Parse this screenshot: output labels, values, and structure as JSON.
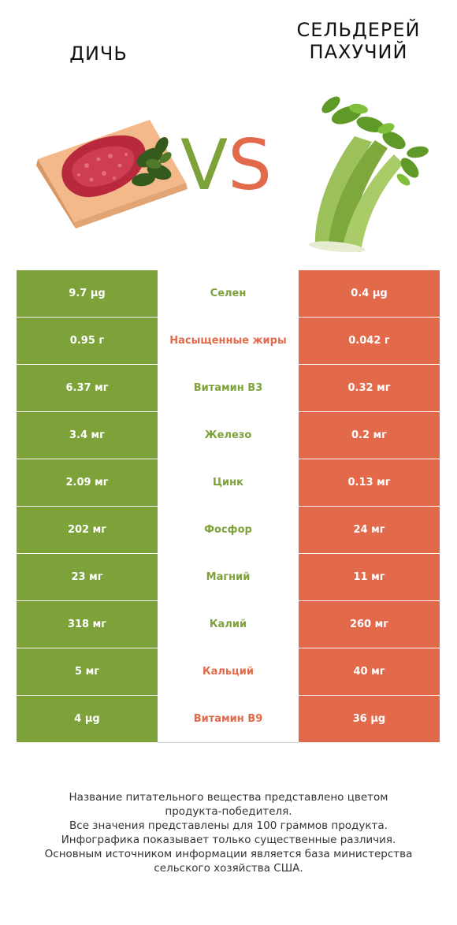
{
  "header": {
    "left_title": "ДИЧЬ",
    "right_title_line1": "СЕЛЬДЕРЕЙ",
    "right_title_line2": "ПАХУЧИЙ",
    "vs_v": "V",
    "vs_s": "S"
  },
  "colors": {
    "left_winner": "#7ea23a",
    "right_winner": "#e26a4b"
  },
  "rows": [
    {
      "left": "9.7 µg",
      "name": "Селен",
      "right": "0.4 µg",
      "winner": "left"
    },
    {
      "left": "0.95 г",
      "name": "Насыщенные жиры",
      "right": "0.042 г",
      "winner": "right"
    },
    {
      "left": "6.37 мг",
      "name": "Витамин B3",
      "right": "0.32 мг",
      "winner": "left"
    },
    {
      "left": "3.4 мг",
      "name": "Железо",
      "right": "0.2 мг",
      "winner": "left"
    },
    {
      "left": "2.09 мг",
      "name": "Цинк",
      "right": "0.13 мг",
      "winner": "left"
    },
    {
      "left": "202 мг",
      "name": "Фосфор",
      "right": "24 мг",
      "winner": "left"
    },
    {
      "left": "23 мг",
      "name": "Магний",
      "right": "11 мг",
      "winner": "left"
    },
    {
      "left": "318 мг",
      "name": "Калий",
      "right": "260 мг",
      "winner": "left"
    },
    {
      "left": "5 мг",
      "name": "Кальций",
      "right": "40 мг",
      "winner": "right"
    },
    {
      "left": "4 µg",
      "name": "Витамин B9",
      "right": "36 µg",
      "winner": "right"
    }
  ],
  "footer": {
    "line1": "Название питательного вещества представлено цветом",
    "line2": "продукта-победителя.",
    "line3": "Все значения представлены для 100 граммов продукта.",
    "line4": "Инфографика показывает только существенные различия.",
    "line5": "Основным источником информации является база министерства",
    "line6": "сельского хозяйства США."
  }
}
